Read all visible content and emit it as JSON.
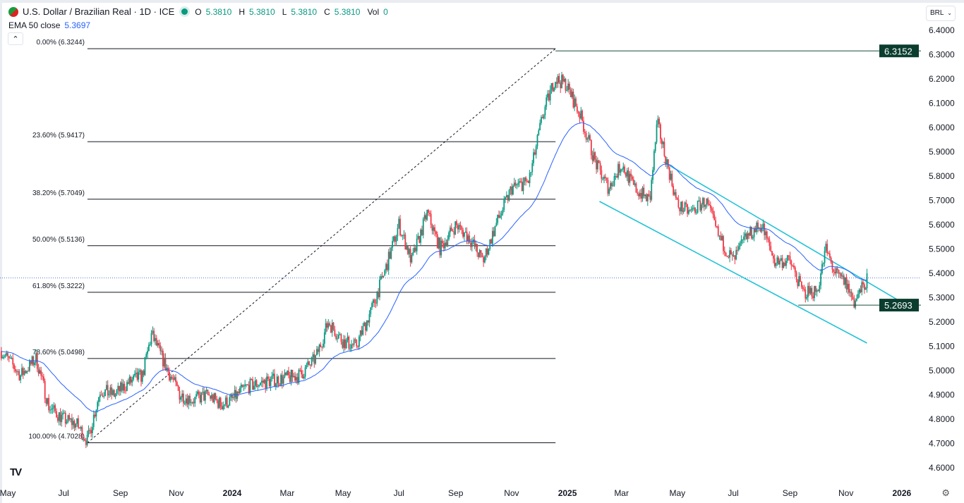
{
  "header": {
    "symbol": "U.S. Dollar / Brazilian Real · 1D · ICE",
    "open_label": "O",
    "open": "5.3810",
    "high_label": "H",
    "high": "5.3810",
    "low_label": "L",
    "low": "5.3810",
    "close_label": "C",
    "close": "5.3810",
    "vol_label": "Vol",
    "vol": "0"
  },
  "indicator": {
    "label": "EMA 50 close",
    "value": "5.3697",
    "color": "#2962ff"
  },
  "collapse_icon": "chevron-up-icon",
  "currency_selector": "BRL",
  "colors": {
    "up": "#089981",
    "down": "#f23645",
    "ema": "#2962ff",
    "channel": "#22c3d6",
    "fib": "#131722",
    "label_bg": "#0b3d2e"
  },
  "chart_data": {
    "type": "candlestick",
    "title": "U.S. Dollar / Brazilian Real · 1D · ICE",
    "ylim": [
      4.6,
      6.4
    ],
    "y_ticks": [
      "6.4000",
      "6.3000",
      "6.2000",
      "6.1000",
      "6.0000",
      "5.9000",
      "5.8000",
      "5.7000",
      "5.6000",
      "5.5000",
      "5.4000",
      "5.3000",
      "5.2000",
      "5.1000",
      "5.0000",
      "4.9000",
      "4.8000",
      "4.7000",
      "4.6000"
    ],
    "x_ticks": [
      [
        "2023-05-01",
        "May"
      ],
      [
        "2023-07-01",
        "Jul"
      ],
      [
        "2023-09-01",
        "Sep"
      ],
      [
        "2023-11-01",
        "Nov"
      ],
      [
        "2024-01-01",
        "2024"
      ],
      [
        "2024-03-01",
        "Mar"
      ],
      [
        "2024-05-01",
        "May"
      ],
      [
        "2024-07-01",
        "Jul"
      ],
      [
        "2024-09-01",
        "Sep"
      ],
      [
        "2024-11-01",
        "Nov"
      ],
      [
        "2025-01-01",
        "2025"
      ],
      [
        "2025-03-01",
        "Mar"
      ],
      [
        "2025-05-01",
        "May"
      ],
      [
        "2025-07-01",
        "Jul"
      ],
      [
        "2025-09-01",
        "Sep"
      ],
      [
        "2025-11-01",
        "Nov"
      ],
      [
        "2026-01-01",
        "2026"
      ]
    ],
    "x_range": [
      "2023-04-22",
      "2026-03-01"
    ],
    "approx_close_path": [
      [
        "2023-04-24",
        5.08
      ],
      [
        "2023-05-15",
        4.98
      ],
      [
        "2023-06-01",
        5.05
      ],
      [
        "2023-06-15",
        4.85
      ],
      [
        "2023-07-01",
        4.8
      ],
      [
        "2023-07-15",
        4.78
      ],
      [
        "2023-07-27",
        4.71
      ],
      [
        "2023-08-10",
        4.92
      ],
      [
        "2023-08-25",
        4.9
      ],
      [
        "2023-09-10",
        4.95
      ],
      [
        "2023-09-25",
        4.98
      ],
      [
        "2023-10-05",
        5.15
      ],
      [
        "2023-10-20",
        5.02
      ],
      [
        "2023-11-05",
        4.9
      ],
      [
        "2023-11-20",
        4.88
      ],
      [
        "2023-12-05",
        4.9
      ],
      [
        "2023-12-20",
        4.86
      ],
      [
        "2024-01-01",
        4.88
      ],
      [
        "2024-01-15",
        4.93
      ],
      [
        "2024-02-01",
        4.95
      ],
      [
        "2024-02-15",
        4.96
      ],
      [
        "2024-03-01",
        4.97
      ],
      [
        "2024-03-15",
        4.98
      ],
      [
        "2024-04-01",
        5.05
      ],
      [
        "2024-04-15",
        5.2
      ],
      [
        "2024-05-01",
        5.12
      ],
      [
        "2024-05-15",
        5.1
      ],
      [
        "2024-06-01",
        5.25
      ],
      [
        "2024-06-15",
        5.4
      ],
      [
        "2024-07-01",
        5.6
      ],
      [
        "2024-07-15",
        5.45
      ],
      [
        "2024-08-01",
        5.65
      ],
      [
        "2024-08-15",
        5.5
      ],
      [
        "2024-09-01",
        5.6
      ],
      [
        "2024-09-15",
        5.55
      ],
      [
        "2024-10-01",
        5.45
      ],
      [
        "2024-10-15",
        5.6
      ],
      [
        "2024-11-01",
        5.75
      ],
      [
        "2024-11-20",
        5.78
      ],
      [
        "2024-12-05",
        6.05
      ],
      [
        "2024-12-18",
        6.2
      ],
      [
        "2024-12-30",
        6.18
      ],
      [
        "2025-01-15",
        6.05
      ],
      [
        "2025-02-01",
        5.85
      ],
      [
        "2025-02-15",
        5.75
      ],
      [
        "2025-03-01",
        5.85
      ],
      [
        "2025-03-15",
        5.75
      ],
      [
        "2025-04-01",
        5.7
      ],
      [
        "2025-04-09",
        6.02
      ],
      [
        "2025-04-20",
        5.85
      ],
      [
        "2025-05-01",
        5.68
      ],
      [
        "2025-05-15",
        5.65
      ],
      [
        "2025-06-01",
        5.7
      ],
      [
        "2025-06-15",
        5.55
      ],
      [
        "2025-07-01",
        5.45
      ],
      [
        "2025-07-15",
        5.55
      ],
      [
        "2025-08-01",
        5.6
      ],
      [
        "2025-08-15",
        5.45
      ],
      [
        "2025-09-01",
        5.45
      ],
      [
        "2025-09-15",
        5.32
      ],
      [
        "2025-10-01",
        5.33
      ],
      [
        "2025-10-10",
        5.5
      ],
      [
        "2025-10-20",
        5.4
      ],
      [
        "2025-11-01",
        5.36
      ],
      [
        "2025-11-10",
        5.28
      ],
      [
        "2025-11-25",
        5.38
      ]
    ],
    "last_price": 5.381,
    "fibonacci": {
      "from": "2023-07-27",
      "to": "2024-12-19",
      "levels": [
        [
          "0.00%",
          "6.3244"
        ],
        [
          "23.60%",
          "5.9417"
        ],
        [
          "38.20%",
          "5.7049"
        ],
        [
          "50.00%",
          "5.5136"
        ],
        [
          "61.80%",
          "5.3222"
        ],
        [
          "78.60%",
          "5.0498"
        ],
        [
          "100.00%",
          "4.7028"
        ]
      ]
    },
    "horizontal_levels": [
      {
        "value": "6.3152",
        "from": "2024-12-19"
      },
      {
        "value": "5.2693",
        "from": "2025-09-10"
      }
    ],
    "channel": {
      "upper": [
        [
          "2025-04-16",
          5.858
        ],
        [
          "2026-01-05",
          5.272
        ]
      ],
      "lower": [
        [
          "2025-02-05",
          5.696
        ],
        [
          "2025-11-24",
          5.113
        ]
      ]
    }
  },
  "footer": {
    "logo": "TV",
    "settings_icon": "gear-icon"
  }
}
